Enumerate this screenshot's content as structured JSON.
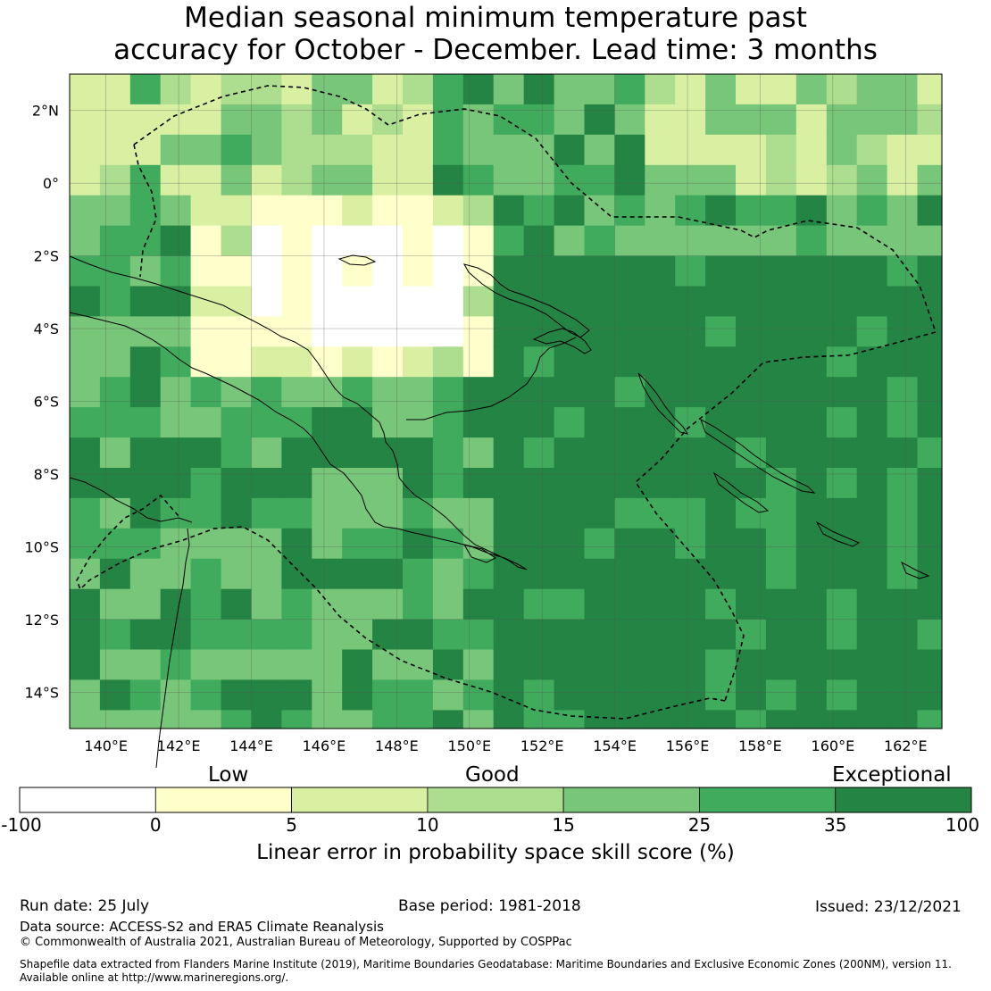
{
  "title": {
    "line1": "Median seasonal minimum temperature past",
    "line2": "accuracy for October - December. Lead time: 3 months"
  },
  "map": {
    "lon_range": [
      139,
      163
    ],
    "lat_range": [
      -15,
      3
    ],
    "lon_ticks": [
      {
        "value": 140,
        "label": "140°E"
      },
      {
        "value": 142,
        "label": "142°E"
      },
      {
        "value": 144,
        "label": "144°E"
      },
      {
        "value": 146,
        "label": "146°E"
      },
      {
        "value": 148,
        "label": "148°E"
      },
      {
        "value": 150,
        "label": "150°E"
      },
      {
        "value": 152,
        "label": "152°E"
      },
      {
        "value": 154,
        "label": "154°E"
      },
      {
        "value": 156,
        "label": "156°E"
      },
      {
        "value": 158,
        "label": "158°E"
      },
      {
        "value": 160,
        "label": "160°E"
      },
      {
        "value": 162,
        "label": "162°E"
      }
    ],
    "lat_ticks": [
      {
        "value": 2,
        "label": "2°N"
      },
      {
        "value": 0,
        "label": "0°"
      },
      {
        "value": -2,
        "label": "2°S"
      },
      {
        "value": -4,
        "label": "4°S"
      },
      {
        "value": -6,
        "label": "6°S"
      },
      {
        "value": -8,
        "label": "8°S"
      },
      {
        "value": -10,
        "label": "10°S"
      },
      {
        "value": -12,
        "label": "12°S"
      },
      {
        "value": -14,
        "label": "14°S"
      }
    ],
    "gridlines": true,
    "cell_deg": 0.833
  },
  "colorbar": {
    "title": "Linear error in probability space skill score (%)",
    "category_labels": [
      "Low",
      "Good",
      "Exceptional"
    ],
    "tick_labels": [
      "-100",
      "0",
      "5",
      "10",
      "15",
      "25",
      "35",
      "100"
    ],
    "bins": [
      {
        "from": -100,
        "to": 0,
        "color": "#ffffff"
      },
      {
        "from": 0,
        "to": 5,
        "color": "#ffffcc"
      },
      {
        "from": 5,
        "to": 10,
        "color": "#d9f0a3"
      },
      {
        "from": 10,
        "to": 15,
        "color": "#addd8e"
      },
      {
        "from": 15,
        "to": 25,
        "color": "#78c679"
      },
      {
        "from": 25,
        "to": 35,
        "color": "#41ab5d"
      },
      {
        "from": 35,
        "to": 100,
        "color": "#238443"
      }
    ]
  },
  "footer": {
    "run_date": "Run date: 25 July",
    "base_period": "Base period: 1981-2018",
    "issued": "Issued: 23/12/2021",
    "data_source": "Data source: ACCESS-S2 and ERA5 Climate Reanalysis",
    "copyright": "© Commonwealth of Australia 2021, Australian Bureau of Meteorology, Supported by COSPPac",
    "shapefile_line1": "Shapefile data extracted from Flanders Marine Institute (2019), Maritime Boundaries Geodatabase: Maritime Boundaries and Exclusive Economic Zones (200NM), version 11.",
    "shapefile_line2": "Available online at http://www.marineregions.org/."
  }
}
